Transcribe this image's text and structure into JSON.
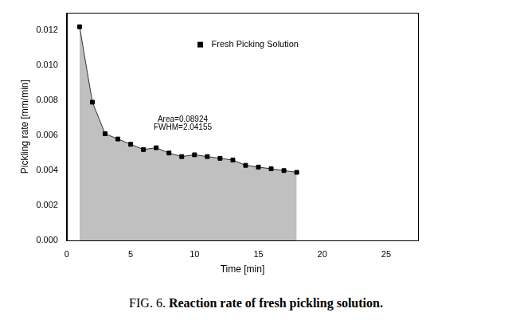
{
  "chart_data": {
    "type": "line",
    "x_label": "Time [min]",
    "y_label": "Pickling rate [mm/min]",
    "x": [
      1,
      2,
      3,
      4,
      5,
      6,
      7,
      8,
      9,
      10,
      11,
      12,
      13,
      14,
      15,
      16,
      17,
      18
    ],
    "series": [
      {
        "name": "Fresh Picking Solution",
        "color": "#000000",
        "marker": "square",
        "line_style": "solid",
        "values": [
          0.0122,
          0.0079,
          0.0061,
          0.0058,
          0.0055,
          0.0052,
          0.0053,
          0.005,
          0.0048,
          0.0049,
          0.0048,
          0.0047,
          0.0046,
          0.0043,
          0.0042,
          0.0041,
          0.004,
          0.0039
        ]
      }
    ],
    "annotations": [
      "Area=0.08924",
      "FWHM=2.04155"
    ],
    "xlim": [
      0,
      27.5
    ],
    "xticks": [
      0,
      5,
      10,
      15,
      20,
      25
    ],
    "ylim": [
      0,
      0.013
    ],
    "yticks": [
      {
        "value": 0,
        "label": "0.000"
      },
      {
        "value": 0.002,
        "label": "0.002"
      },
      {
        "value": 0.004,
        "label": "0.004"
      },
      {
        "value": 0.006,
        "label": "0.006"
      },
      {
        "value": 0.008,
        "label": "0.008"
      },
      {
        "value": 0.01,
        "label": "0.010"
      },
      {
        "value": 0.012,
        "label": "0.012"
      }
    ],
    "grid": false,
    "legend": "top"
  },
  "caption": {
    "label": "FIG. 6.",
    "text": "Reaction rate of fresh pickling solution."
  }
}
